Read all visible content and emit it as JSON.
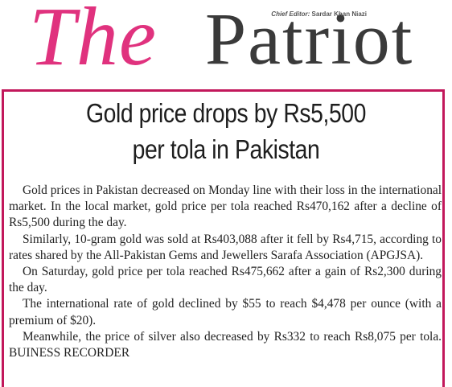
{
  "masthead": {
    "title_the": "The",
    "title_patriot": "Patriot",
    "editor_label": "Chief Editor:",
    "editor_name": "Sardar Khan Niazi"
  },
  "article": {
    "headline_line1": "Gold price drops by Rs5,500",
    "headline_line2": "per tola in Pakistan",
    "paragraphs": [
      "Gold prices in Pakistan decreased on Monday line with their loss in the international market. In the local market, gold price per tola reached Rs470,162 after a decline of Rs5,500 during the day.",
      "Similarly, 10-gram gold was sold at Rs403,088 after it fell by Rs4,715, according to rates shared by the All-Pakistan Gems and Jewellers Sarafa Association (APGJSA).",
      "On Saturday, gold price per tola reached Rs475,662 after a gain of Rs2,300 during the day.",
      "The international rate of gold declined by $55 to reach $4,478 per ounce (with a premium of $20).",
      "Meanwhile, the price of silver also decreased by Rs332 to reach Rs8,075 per tola. BUINESS RECORDER"
    ]
  },
  "colors": {
    "brand_magenta": "#e0327e",
    "frame_border": "#c2185b",
    "title_gray": "#3a3a3a"
  }
}
